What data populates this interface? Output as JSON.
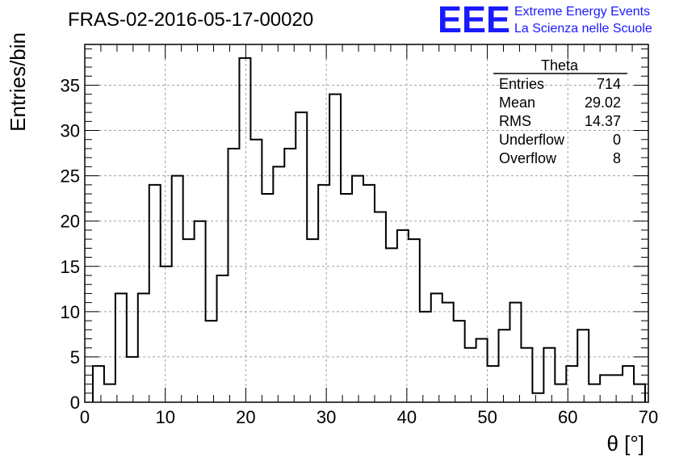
{
  "chart_data": {
    "type": "bar",
    "title": "FRAS-02-2016-05-17-00020",
    "xlabel": "θ [°]",
    "ylabel": "Entries/bin",
    "xlim": [
      0,
      70
    ],
    "ylim": [
      0,
      39.5
    ],
    "bin_width": 1.4,
    "x_start": 1.0,
    "x_ticks": [
      0,
      10,
      20,
      30,
      40,
      50,
      60,
      70
    ],
    "y_ticks": [
      0,
      5,
      10,
      15,
      20,
      25,
      30,
      35
    ],
    "grid": true,
    "values": [
      4,
      2,
      12,
      5,
      12,
      24,
      15,
      25,
      18,
      20,
      9,
      14,
      28,
      38,
      29,
      23,
      26,
      28,
      32,
      18,
      24,
      34,
      23,
      25,
      24,
      21,
      17,
      19,
      18,
      10,
      12,
      11,
      9,
      6,
      7,
      4,
      8,
      11,
      6,
      1,
      6,
      2,
      4,
      8,
      2,
      3,
      3,
      4,
      2
    ],
    "stats_box": {
      "title": "Theta",
      "rows": [
        {
          "label": "Entries",
          "value": "714"
        },
        {
          "label": "Mean",
          "value": "29.02"
        },
        {
          "label": "RMS",
          "value": "14.37"
        },
        {
          "label": "Underflow",
          "value": "0"
        },
        {
          "label": "Overflow",
          "value": "8"
        }
      ]
    }
  },
  "logo": {
    "mark": "EEE",
    "line1": "Extreme Energy Events",
    "line2": "La Scienza nelle Scuole",
    "color": "#1a1aff"
  },
  "colors": {
    "line": "#000000",
    "grid": "#a0a0a0"
  }
}
